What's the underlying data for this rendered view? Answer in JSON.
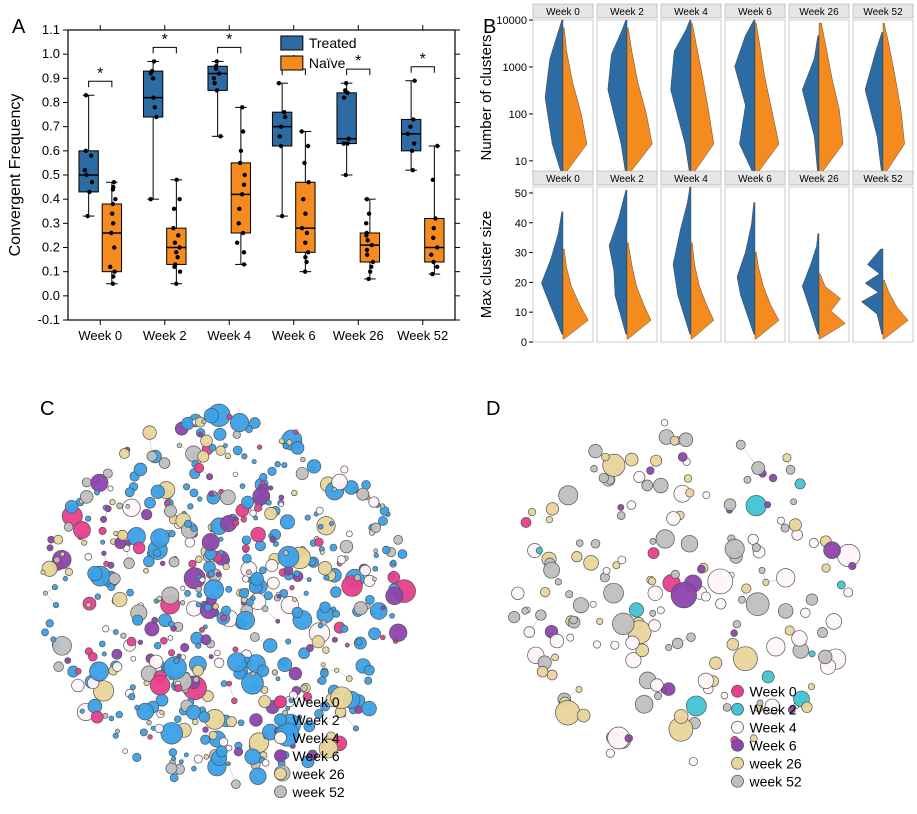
{
  "panelA": {
    "label": "A",
    "type": "boxplot",
    "ylabel": "Convergent Frequency",
    "label_fontsize": 16,
    "tick_fontsize": 13,
    "ylim": [
      -0.1,
      1.1
    ],
    "ytick_step": 0.1,
    "categories": [
      "Week 0",
      "Week 2",
      "Week 4",
      "Week 6",
      "Week 26",
      "Week 52"
    ],
    "legend": {
      "treated": "Treated",
      "naive": "Naïve"
    },
    "colors": {
      "treated": "#2d6ca2",
      "naive": "#f58a1f",
      "axis": "#000",
      "grid": "none",
      "bg": "#fff"
    },
    "sig_marker": "*",
    "series": {
      "treated": {
        "boxes": [
          {
            "min": 0.33,
            "q1": 0.43,
            "med": 0.5,
            "q3": 0.6,
            "max": 0.83,
            "pts": [
              0.33,
              0.43,
              0.47,
              0.5,
              0.52,
              0.58,
              0.6,
              0.83
            ]
          },
          {
            "min": 0.4,
            "q1": 0.74,
            "med": 0.82,
            "q3": 0.93,
            "max": 0.97,
            "pts": [
              0.4,
              0.74,
              0.78,
              0.82,
              0.9,
              0.92,
              0.93,
              0.97
            ]
          },
          {
            "min": 0.66,
            "q1": 0.85,
            "med": 0.92,
            "q3": 0.95,
            "max": 0.97,
            "pts": [
              0.66,
              0.85,
              0.88,
              0.9,
              0.92,
              0.94,
              0.95,
              0.97
            ]
          },
          {
            "min": 0.33,
            "q1": 0.62,
            "med": 0.7,
            "q3": 0.76,
            "max": 0.88,
            "pts": [
              0.33,
              0.62,
              0.66,
              0.7,
              0.74,
              0.76,
              0.88
            ]
          },
          {
            "min": 0.5,
            "q1": 0.63,
            "med": 0.65,
            "q3": 0.84,
            "max": 0.88,
            "pts": [
              0.5,
              0.63,
              0.63,
              0.65,
              0.82,
              0.84,
              0.85,
              0.88
            ]
          },
          {
            "min": 0.52,
            "q1": 0.6,
            "med": 0.67,
            "q3": 0.73,
            "max": 0.89,
            "pts": [
              0.52,
              0.6,
              0.63,
              0.67,
              0.7,
              0.73,
              0.89
            ]
          }
        ]
      },
      "naive": {
        "boxes": [
          {
            "min": 0.05,
            "q1": 0.1,
            "med": 0.26,
            "q3": 0.38,
            "max": 0.47,
            "pts": [
              0.05,
              0.08,
              0.1,
              0.12,
              0.2,
              0.26,
              0.3,
              0.34,
              0.38,
              0.4,
              0.44,
              0.45,
              0.47
            ]
          },
          {
            "min": 0.05,
            "q1": 0.13,
            "med": 0.2,
            "q3": 0.28,
            "max": 0.48,
            "pts": [
              0.05,
              0.1,
              0.12,
              0.13,
              0.16,
              0.18,
              0.2,
              0.22,
              0.25,
              0.28,
              0.36,
              0.4,
              0.48
            ]
          },
          {
            "min": 0.13,
            "q1": 0.26,
            "med": 0.42,
            "q3": 0.55,
            "max": 0.78,
            "pts": [
              0.13,
              0.18,
              0.22,
              0.26,
              0.3,
              0.36,
              0.42,
              0.46,
              0.5,
              0.55,
              0.6,
              0.68,
              0.78
            ]
          },
          {
            "min": 0.1,
            "q1": 0.18,
            "med": 0.28,
            "q3": 0.47,
            "max": 0.68,
            "pts": [
              0.1,
              0.14,
              0.16,
              0.18,
              0.22,
              0.26,
              0.28,
              0.34,
              0.4,
              0.47,
              0.55,
              0.62,
              0.68
            ]
          },
          {
            "min": 0.07,
            "q1": 0.14,
            "med": 0.21,
            "q3": 0.26,
            "max": 0.4,
            "pts": [
              0.07,
              0.1,
              0.12,
              0.14,
              0.17,
              0.19,
              0.21,
              0.23,
              0.25,
              0.26,
              0.3,
              0.34,
              0.4
            ]
          },
          {
            "min": 0.09,
            "q1": 0.14,
            "med": 0.2,
            "q3": 0.32,
            "max": 0.62,
            "pts": [
              0.09,
              0.12,
              0.14,
              0.17,
              0.2,
              0.24,
              0.28,
              0.32,
              0.48,
              0.62
            ]
          }
        ]
      }
    }
  },
  "panelB": {
    "label": "B",
    "type": "split-violin",
    "facet_labels": [
      "Week 0",
      "Week 2",
      "Week 4",
      "Week 6",
      "Week 26",
      "Week 52"
    ],
    "rows": [
      {
        "ylabel": "Number of clusters",
        "scale": "log",
        "ticks": [
          10,
          100,
          1000,
          10000
        ],
        "range": [
          5,
          10000
        ]
      },
      {
        "ylabel": "Max cluster size",
        "scale": "linear",
        "ticks": [
          0,
          10,
          20,
          30,
          40,
          50
        ],
        "range": [
          0,
          52
        ]
      }
    ],
    "colors": {
      "treated": "#2d6ca2",
      "naive": "#f58a1f",
      "facet_bg": "#e6e6e6",
      "facet_border": "#999",
      "axis": "#000"
    },
    "label_fontsize": 15,
    "tick_fontsize": 11,
    "violins_top": {
      "treated": [
        [
          [
            0.02,
            0
          ],
          [
            0.18,
            0.2
          ],
          [
            0.3,
            0.5
          ],
          [
            0.22,
            0.75
          ],
          [
            0.1,
            0.9
          ],
          [
            0.02,
            1.0
          ]
        ],
        [
          [
            0.02,
            0
          ],
          [
            0.1,
            0.2
          ],
          [
            0.32,
            0.55
          ],
          [
            0.26,
            0.78
          ],
          [
            0.1,
            0.92
          ],
          [
            0.02,
            1.0
          ]
        ],
        [
          [
            0.02,
            0
          ],
          [
            0.1,
            0.2
          ],
          [
            0.34,
            0.55
          ],
          [
            0.28,
            0.8
          ],
          [
            0.08,
            0.94
          ],
          [
            0.02,
            1.0
          ]
        ],
        [
          [
            0.02,
            0
          ],
          [
            0.26,
            0.2
          ],
          [
            0.16,
            0.45
          ],
          [
            0.34,
            0.7
          ],
          [
            0.16,
            0.9
          ],
          [
            0.02,
            1.0
          ]
        ],
        [
          [
            0.02,
            0
          ],
          [
            0.08,
            0.25
          ],
          [
            0.28,
            0.55
          ],
          [
            0.08,
            0.75
          ],
          [
            0.02,
            0.9
          ]
        ],
        [
          [
            0.02,
            0
          ],
          [
            0.1,
            0.25
          ],
          [
            0.3,
            0.55
          ],
          [
            0.12,
            0.8
          ],
          [
            0.02,
            0.92
          ]
        ]
      ],
      "naive": [
        [
          [
            0.02,
            0
          ],
          [
            0.4,
            0.2
          ],
          [
            0.3,
            0.4
          ],
          [
            0.16,
            0.6
          ],
          [
            0.06,
            0.8
          ],
          [
            0.02,
            0.95
          ]
        ],
        [
          [
            0.02,
            0
          ],
          [
            0.42,
            0.2
          ],
          [
            0.32,
            0.4
          ],
          [
            0.18,
            0.6
          ],
          [
            0.08,
            0.8
          ],
          [
            0.02,
            0.95
          ]
        ],
        [
          [
            0.02,
            0
          ],
          [
            0.38,
            0.2
          ],
          [
            0.3,
            0.4
          ],
          [
            0.2,
            0.62
          ],
          [
            0.1,
            0.82
          ],
          [
            0.02,
            0.98
          ]
        ],
        [
          [
            0.02,
            0
          ],
          [
            0.4,
            0.2
          ],
          [
            0.28,
            0.42
          ],
          [
            0.16,
            0.64
          ],
          [
            0.08,
            0.84
          ],
          [
            0.02,
            0.98
          ]
        ],
        [
          [
            0.02,
            0
          ],
          [
            0.4,
            0.2
          ],
          [
            0.34,
            0.42
          ],
          [
            0.22,
            0.62
          ],
          [
            0.12,
            0.82
          ],
          [
            0.04,
            0.98
          ]
        ],
        [
          [
            0.02,
            0
          ],
          [
            0.36,
            0.2
          ],
          [
            0.3,
            0.42
          ],
          [
            0.2,
            0.64
          ],
          [
            0.1,
            0.84
          ],
          [
            0.02,
            0.98
          ]
        ]
      ]
    },
    "violins_bottom": {
      "treated": [
        [
          [
            0.02,
            0.05
          ],
          [
            0.28,
            0.3
          ],
          [
            0.36,
            0.38
          ],
          [
            0.2,
            0.54
          ],
          [
            0.08,
            0.7
          ],
          [
            0.02,
            0.84
          ]
        ],
        [
          [
            0.02,
            0.05
          ],
          [
            0.2,
            0.3
          ],
          [
            0.22,
            0.46
          ],
          [
            0.3,
            0.62
          ],
          [
            0.14,
            0.8
          ],
          [
            0.02,
            0.98
          ]
        ],
        [
          [
            0.02,
            0.05
          ],
          [
            0.22,
            0.3
          ],
          [
            0.3,
            0.5
          ],
          [
            0.18,
            0.72
          ],
          [
            0.06,
            0.9
          ],
          [
            0.02,
            1.0
          ]
        ],
        [
          [
            0.02,
            0.05
          ],
          [
            0.24,
            0.3
          ],
          [
            0.3,
            0.42
          ],
          [
            0.16,
            0.58
          ],
          [
            0.06,
            0.76
          ],
          [
            0.02,
            0.9
          ]
        ],
        [
          [
            0.02,
            0.05
          ],
          [
            0.16,
            0.22
          ],
          [
            0.28,
            0.36
          ],
          [
            0.14,
            0.5
          ],
          [
            0.04,
            0.62
          ],
          [
            0.02,
            0.7
          ]
        ],
        [
          [
            0.02,
            0.05
          ],
          [
            0.1,
            0.18
          ],
          [
            0.36,
            0.26
          ],
          [
            0.08,
            0.32
          ],
          [
            0.3,
            0.38
          ],
          [
            0.06,
            0.44
          ],
          [
            0.26,
            0.5
          ],
          [
            0.04,
            0.6
          ]
        ]
      ],
      "naive": [
        [
          [
            0.02,
            0.02
          ],
          [
            0.42,
            0.14
          ],
          [
            0.28,
            0.24
          ],
          [
            0.14,
            0.36
          ],
          [
            0.06,
            0.48
          ],
          [
            0.02,
            0.6
          ]
        ],
        [
          [
            0.02,
            0.02
          ],
          [
            0.4,
            0.14
          ],
          [
            0.28,
            0.24
          ],
          [
            0.16,
            0.36
          ],
          [
            0.08,
            0.5
          ],
          [
            0.02,
            0.64
          ]
        ],
        [
          [
            0.02,
            0.02
          ],
          [
            0.38,
            0.14
          ],
          [
            0.26,
            0.24
          ],
          [
            0.14,
            0.36
          ],
          [
            0.06,
            0.5
          ],
          [
            0.02,
            0.64
          ]
        ],
        [
          [
            0.02,
            0.02
          ],
          [
            0.4,
            0.14
          ],
          [
            0.26,
            0.24
          ],
          [
            0.14,
            0.36
          ],
          [
            0.06,
            0.48
          ],
          [
            0.02,
            0.58
          ]
        ],
        [
          [
            0.02,
            0.02
          ],
          [
            0.44,
            0.12
          ],
          [
            0.2,
            0.2
          ],
          [
            0.36,
            0.28
          ],
          [
            0.1,
            0.36
          ],
          [
            0.02,
            0.44
          ]
        ],
        [
          [
            0.02,
            0.02
          ],
          [
            0.42,
            0.14
          ],
          [
            0.24,
            0.22
          ],
          [
            0.1,
            0.32
          ],
          [
            0.02,
            0.4
          ]
        ]
      ]
    }
  },
  "panelC": {
    "label": "C",
    "type": "network",
    "legend_items": [
      "Week 0",
      "Week 2",
      "Week 4",
      "Week 6",
      "week 26",
      "week 52"
    ],
    "colors": {
      "Week 0": "#e83e8c",
      "Week 2": "#3aa0e8",
      "Week 4": "#fef6f9",
      "Week 6": "#8e44ad",
      "week 26": "#e8d59a",
      "week 52": "#bfbfbf",
      "edge": "#c8c8c8",
      "stroke": "#555"
    },
    "node_size_range": [
      2,
      12
    ],
    "n_nodes": 650,
    "density": 1.0,
    "weights": {
      "Week 0": 0.1,
      "Week 2": 0.42,
      "Week 4": 0.1,
      "Week 6": 0.12,
      "week 26": 0.14,
      "week 52": 0.12
    },
    "label_fontsize": 14
  },
  "panelD": {
    "label": "D",
    "type": "network",
    "legend_items": [
      "Week 0",
      "Week 2",
      "Week 4",
      "Week 6",
      "week 26",
      "week 52"
    ],
    "colors": {
      "Week 0": "#e83e8c",
      "Week 2": "#40c4d4",
      "Week 4": "#fef6f9",
      "Week 6": "#8e44ad",
      "week 26": "#e8d59a",
      "week 52": "#bfbfbf",
      "edge": "#c8c8c8",
      "stroke": "#555"
    },
    "node_size_range": [
      3,
      14
    ],
    "n_nodes": 200,
    "density": 0.6,
    "weights": {
      "Week 0": 0.03,
      "Week 2": 0.08,
      "Week 4": 0.24,
      "Week 6": 0.08,
      "week 26": 0.25,
      "week 52": 0.32
    },
    "label_fontsize": 14
  }
}
